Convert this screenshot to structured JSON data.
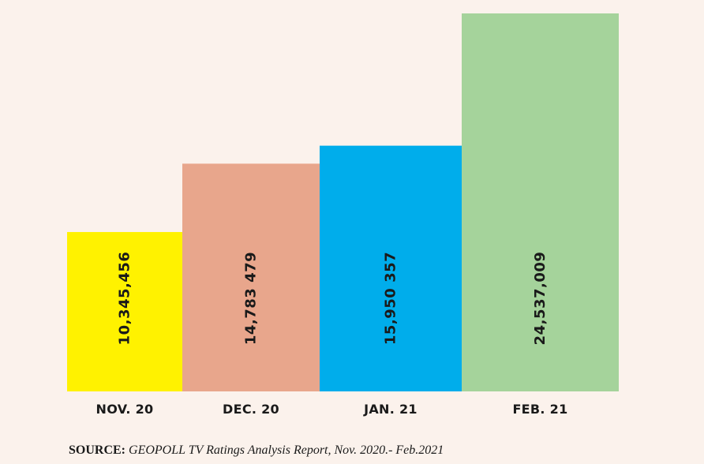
{
  "chart_data": {
    "type": "bar",
    "title": "",
    "xlabel": "",
    "ylabel": "",
    "categories": [
      "NOV. 20",
      "DEC. 20",
      "JAN. 21",
      "FEB. 21"
    ],
    "values": [
      10345456,
      14783479,
      15950357,
      24537009
    ],
    "value_labels": [
      "10,345,456",
      "14,783 479",
      "15,950 357",
      "24,537,009"
    ],
    "colors": [
      "#fff200",
      "#e8a68c",
      "#00adeb",
      "#a5d39b"
    ],
    "value_label_orientation": "vertical",
    "grid": false,
    "legend": "none"
  },
  "source": {
    "label": "SOURCE:",
    "text": "GEOPOLL TV Ratings Analysis Report, Nov. 2020.- Feb.2021"
  }
}
